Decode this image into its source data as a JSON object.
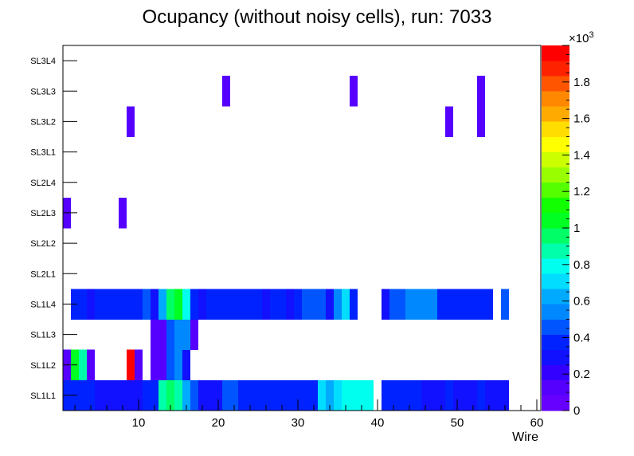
{
  "chart_data": {
    "type": "heatmap",
    "title": "Ocupancy (without noisy cells), run: 7033",
    "xlabel": "Wire",
    "ylabel": "",
    "xlim": [
      0.5,
      60.5
    ],
    "x_ticks": [
      10,
      20,
      30,
      40,
      50,
      60
    ],
    "y_categories": [
      "SL1L1",
      "SL1L2",
      "SL1L3",
      "SL1L4",
      "SL2L1",
      "SL2L2",
      "SL2L3",
      "SL2L4",
      "SL3L1",
      "SL3L2",
      "SL3L3",
      "SL3L4"
    ],
    "z_range": [
      0,
      2000
    ],
    "z_ticks": [
      "0",
      "0.2",
      "0.4",
      "0.6",
      "0.8",
      "1",
      "1.2",
      "1.4",
      "1.6",
      "1.8"
    ],
    "z_multiplier_base": "×10",
    "z_multiplier_exp": "3",
    "rows": {
      "SL1L1": [
        [
          1,
          4,
          400
        ],
        [
          5,
          10,
          260
        ],
        [
          11,
          12,
          370
        ],
        [
          13,
          13,
          840
        ],
        [
          14,
          14,
          950
        ],
        [
          15,
          15,
          850
        ],
        [
          16,
          16,
          620
        ],
        [
          17,
          17,
          460
        ],
        [
          18,
          20,
          330
        ],
        [
          21,
          22,
          480
        ],
        [
          23,
          32,
          340
        ],
        [
          33,
          33,
          740
        ],
        [
          34,
          34,
          650
        ],
        [
          35,
          35,
          700
        ],
        [
          36,
          39,
          750
        ],
        [
          41,
          45,
          340
        ],
        [
          46,
          48,
          260
        ],
        [
          49,
          49,
          350
        ],
        [
          50,
          52,
          300
        ],
        [
          53,
          53,
          380
        ],
        [
          54,
          56,
          280
        ]
      ],
      "SL1L2": [
        [
          1,
          1,
          120
        ],
        [
          2,
          2,
          1050
        ],
        [
          3,
          3,
          870
        ],
        [
          4,
          4,
          100
        ],
        [
          9,
          9,
          1930
        ],
        [
          10,
          10,
          120
        ],
        [
          12,
          13,
          110
        ],
        [
          14,
          14,
          450
        ],
        [
          15,
          15,
          510
        ],
        [
          16,
          16,
          320
        ]
      ],
      "SL1L3": [
        [
          12,
          13,
          110
        ],
        [
          14,
          14,
          440
        ],
        [
          15,
          15,
          560
        ],
        [
          16,
          16,
          500
        ],
        [
          17,
          17,
          120
        ]
      ],
      "SL1L4": [
        [
          2,
          3,
          360
        ],
        [
          4,
          4,
          260
        ],
        [
          5,
          10,
          370
        ],
        [
          11,
          11,
          460
        ],
        [
          12,
          12,
          320
        ],
        [
          13,
          13,
          630
        ],
        [
          14,
          14,
          960
        ],
        [
          15,
          15,
          1050
        ],
        [
          16,
          16,
          820
        ],
        [
          17,
          17,
          360
        ],
        [
          18,
          18,
          290
        ],
        [
          19,
          25,
          370
        ],
        [
          26,
          26,
          300
        ],
        [
          27,
          28,
          380
        ],
        [
          29,
          29,
          280
        ],
        [
          30,
          30,
          370
        ],
        [
          31,
          33,
          460
        ],
        [
          34,
          34,
          300
        ],
        [
          35,
          35,
          540
        ],
        [
          36,
          36,
          700
        ],
        [
          37,
          37,
          400
        ],
        [
          41,
          41,
          300
        ],
        [
          42,
          43,
          460
        ],
        [
          44,
          44,
          550
        ],
        [
          45,
          47,
          500
        ],
        [
          48,
          54,
          360
        ],
        [
          56,
          56,
          440
        ]
      ],
      "SL2L3": [
        [
          1,
          1,
          110
        ],
        [
          8,
          8,
          110
        ]
      ],
      "SL3L2": [
        [
          9,
          9,
          110
        ],
        [
          49,
          49,
          110
        ],
        [
          53,
          53,
          110
        ]
      ],
      "SL3L3": [
        [
          21,
          21,
          110
        ],
        [
          37,
          37,
          110
        ],
        [
          53,
          53,
          110
        ]
      ]
    }
  }
}
